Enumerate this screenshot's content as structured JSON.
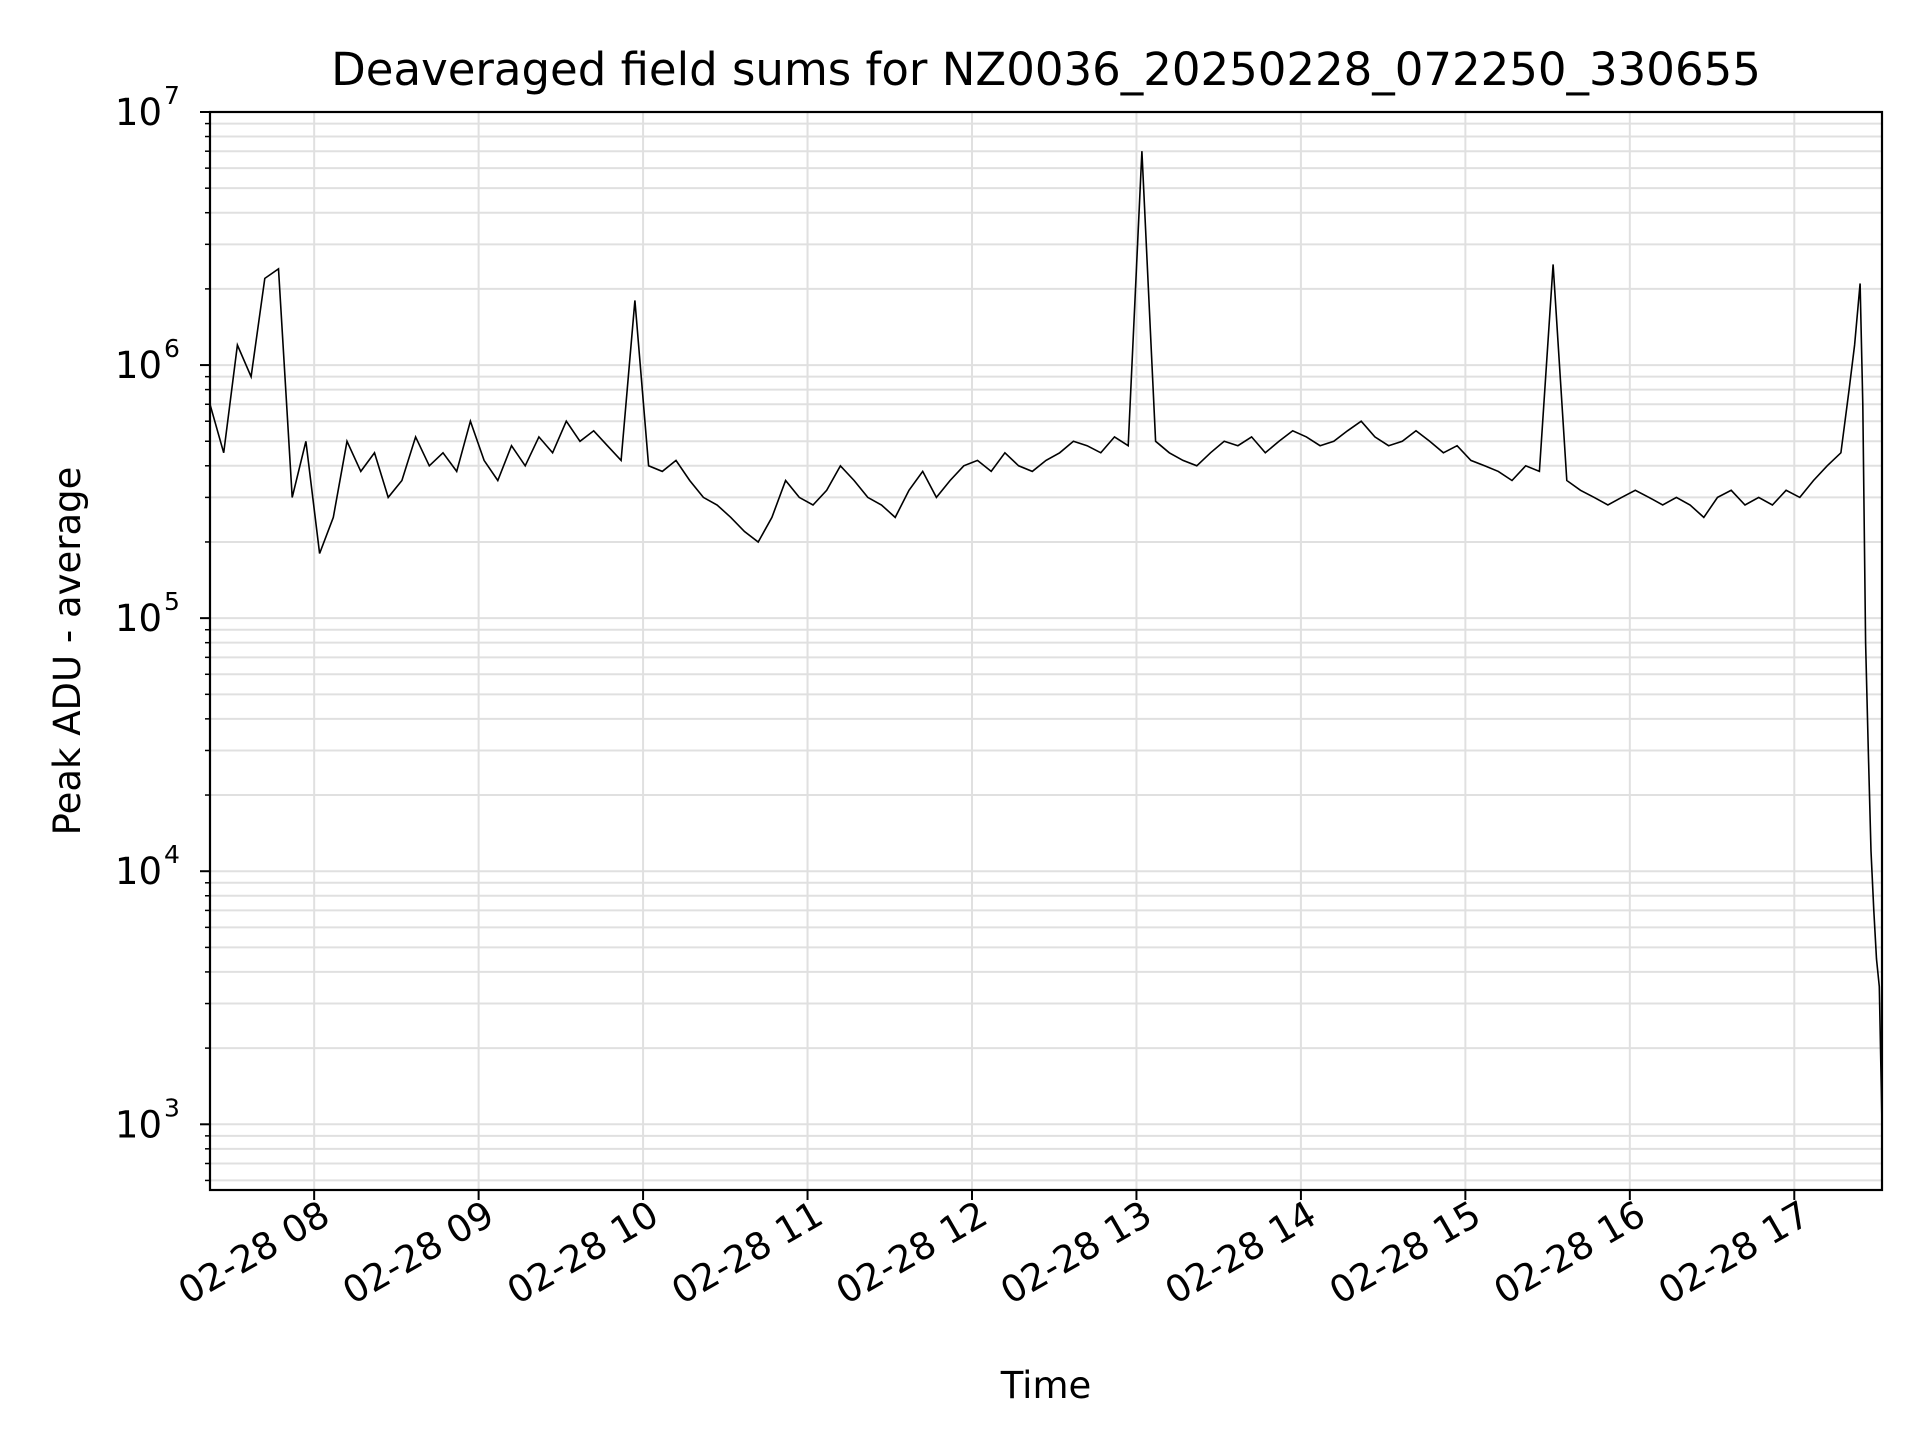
{
  "chart_data": {
    "type": "line",
    "title": "Deaveraged field sums for NZ0036_20250228_072250_330655",
    "xlabel": "Time",
    "ylabel": "Peak ADU - average",
    "x_scale": "time",
    "y_scale": "log",
    "xlim": [
      "02-28 07:22",
      "02-28 17:32"
    ],
    "ylim": [
      550,
      10000000
    ],
    "grid": true,
    "line_color": "#000000",
    "grid_color": "#e0e0e0",
    "x_ticks": [
      "02-28 08",
      "02-28 09",
      "02-28 10",
      "02-28 11",
      "02-28 12",
      "02-28 13",
      "02-28 14",
      "02-28 15",
      "02-28 16",
      "02-28 17"
    ],
    "y_ticks": [
      {
        "base": "10",
        "exp": "3",
        "value": 1000
      },
      {
        "base": "10",
        "exp": "4",
        "value": 10000
      },
      {
        "base": "10",
        "exp": "5",
        "value": 100000
      },
      {
        "base": "10",
        "exp": "6",
        "value": 1000000
      },
      {
        "base": "10",
        "exp": "7",
        "value": 10000000
      }
    ],
    "series": [
      {
        "x": [
          "02-28 07:22",
          "02-28 07:27",
          "02-28 07:32",
          "02-28 07:37",
          "02-28 07:42",
          "02-28 07:47",
          "02-28 07:52",
          "02-28 07:57",
          "02-28 08:02",
          "02-28 08:07",
          "02-28 08:12",
          "02-28 08:17",
          "02-28 08:22",
          "02-28 08:27",
          "02-28 08:32",
          "02-28 08:37",
          "02-28 08:42",
          "02-28 08:47",
          "02-28 08:52",
          "02-28 08:57",
          "02-28 09:02",
          "02-28 09:07",
          "02-28 09:12",
          "02-28 09:17",
          "02-28 09:22",
          "02-28 09:27",
          "02-28 09:32",
          "02-28 09:37",
          "02-28 09:42",
          "02-28 09:47",
          "02-28 09:52",
          "02-28 09:57",
          "02-28 10:02",
          "02-28 10:07",
          "02-28 10:12",
          "02-28 10:17",
          "02-28 10:22",
          "02-28 10:27",
          "02-28 10:32",
          "02-28 10:37",
          "02-28 10:42",
          "02-28 10:47",
          "02-28 10:52",
          "02-28 10:57",
          "02-28 11:02",
          "02-28 11:07",
          "02-28 11:12",
          "02-28 11:17",
          "02-28 11:22",
          "02-28 11:27",
          "02-28 11:32",
          "02-28 11:37",
          "02-28 11:42",
          "02-28 11:47",
          "02-28 11:52",
          "02-28 11:57",
          "02-28 12:02",
          "02-28 12:07",
          "02-28 12:12",
          "02-28 12:17",
          "02-28 12:22",
          "02-28 12:27",
          "02-28 12:32",
          "02-28 12:37",
          "02-28 12:42",
          "02-28 12:47",
          "02-28 12:52",
          "02-28 12:57",
          "02-28 13:02",
          "02-28 13:07",
          "02-28 13:12",
          "02-28 13:17",
          "02-28 13:22",
          "02-28 13:27",
          "02-28 13:32",
          "02-28 13:37",
          "02-28 13:42",
          "02-28 13:47",
          "02-28 13:52",
          "02-28 13:57",
          "02-28 14:02",
          "02-28 14:07",
          "02-28 14:12",
          "02-28 14:17",
          "02-28 14:22",
          "02-28 14:27",
          "02-28 14:32",
          "02-28 14:37",
          "02-28 14:42",
          "02-28 14:47",
          "02-28 14:52",
          "02-28 14:57",
          "02-28 15:02",
          "02-28 15:07",
          "02-28 15:12",
          "02-28 15:17",
          "02-28 15:22",
          "02-28 15:27",
          "02-28 15:32",
          "02-28 15:37",
          "02-28 15:42",
          "02-28 15:47",
          "02-28 15:52",
          "02-28 15:57",
          "02-28 16:02",
          "02-28 16:07",
          "02-28 16:12",
          "02-28 16:17",
          "02-28 16:22",
          "02-28 16:27",
          "02-28 16:32",
          "02-28 16:37",
          "02-28 16:42",
          "02-28 16:47",
          "02-28 16:52",
          "02-28 16:57",
          "02-28 17:02",
          "02-28 17:07",
          "02-28 17:12",
          "02-28 17:17",
          "02-28 17:20",
          "02-28 17:22",
          "02-28 17:24",
          "02-28 17:25",
          "02-28 17:26",
          "02-28 17:27",
          "02-28 17:28",
          "02-28 17:29",
          "02-28 17:30",
          "02-28 17:31",
          "02-28 17:32"
        ],
        "y": [
          700000,
          450000,
          1200000,
          900000,
          2200000,
          2400000,
          300000,
          500000,
          180000,
          250000,
          500000,
          380000,
          450000,
          300000,
          350000,
          520000,
          400000,
          450000,
          380000,
          600000,
          420000,
          350000,
          480000,
          400000,
          520000,
          450000,
          600000,
          500000,
          550000,
          480000,
          420000,
          1800000,
          400000,
          380000,
          420000,
          350000,
          300000,
          280000,
          250000,
          220000,
          200000,
          250000,
          350000,
          300000,
          280000,
          320000,
          400000,
          350000,
          300000,
          280000,
          250000,
          320000,
          380000,
          300000,
          350000,
          400000,
          420000,
          380000,
          450000,
          400000,
          380000,
          420000,
          450000,
          500000,
          480000,
          450000,
          520000,
          480000,
          7000000,
          500000,
          450000,
          420000,
          400000,
          450000,
          500000,
          480000,
          520000,
          450000,
          500000,
          550000,
          520000,
          480000,
          500000,
          550000,
          600000,
          520000,
          480000,
          500000,
          550000,
          500000,
          450000,
          480000,
          420000,
          400000,
          380000,
          350000,
          400000,
          380000,
          2500000,
          350000,
          320000,
          300000,
          280000,
          300000,
          320000,
          300000,
          280000,
          300000,
          280000,
          250000,
          300000,
          320000,
          280000,
          300000,
          280000,
          320000,
          300000,
          350000,
          400000,
          450000,
          800000,
          1200000,
          2100000,
          700000,
          80000,
          30000,
          12000,
          7000,
          4500,
          3500,
          1000
        ]
      }
    ]
  }
}
